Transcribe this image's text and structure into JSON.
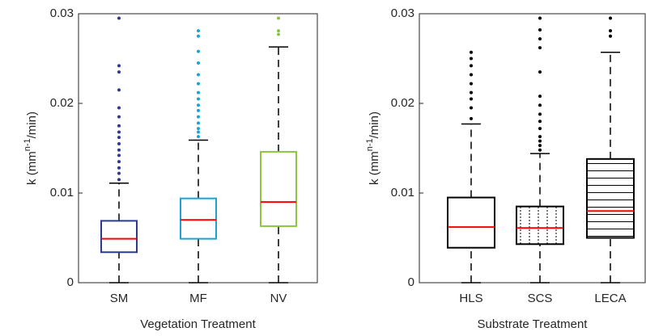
{
  "chart_data": [
    {
      "type": "box",
      "xlabel": "Vegetation Treatment",
      "ylabel": {
        "base": "k (mm",
        "sup": "n-1",
        "unit": "/min)"
      },
      "categories": [
        "SM",
        "MF",
        "NV"
      ],
      "ylim": [
        0,
        0.03
      ],
      "yticks": [
        0,
        0.01,
        0.02,
        0.03
      ],
      "median_color": "#ff0000",
      "boxes": [
        {
          "color": "#2b3990",
          "hatch": "none",
          "whisker_low": 0,
          "q1": 0.0034,
          "median": 0.0049,
          "q3": 0.0069,
          "whisker_high": 0.0111,
          "outliers": [
            0.0115,
            0.0122,
            0.0128,
            0.0135,
            0.0142,
            0.0148,
            0.0155,
            0.0162,
            0.0168,
            0.0175,
            0.0185,
            0.0195,
            0.0215,
            0.0235,
            0.0242,
            0.0295
          ]
        },
        {
          "color": "#1aa3d6",
          "hatch": "none",
          "whisker_low": 0,
          "q1": 0.0049,
          "median": 0.007,
          "q3": 0.0094,
          "whisker_high": 0.0159,
          "outliers": [
            0.0163,
            0.0168,
            0.0172,
            0.0178,
            0.0185,
            0.0192,
            0.0198,
            0.0205,
            0.0212,
            0.0222,
            0.0232,
            0.0245,
            0.0258,
            0.0275,
            0.0281
          ]
        },
        {
          "color": "#8dc63f",
          "hatch": "none",
          "whisker_low": 0,
          "q1": 0.0063,
          "median": 0.009,
          "q3": 0.0146,
          "whisker_high": 0.0263,
          "outliers": [
            0.0277,
            0.0281,
            0.0295
          ]
        }
      ]
    },
    {
      "type": "box",
      "xlabel": "Substrate Treatment",
      "ylabel": {
        "base": "k (mm",
        "sup": "n-1",
        "unit": "/min)"
      },
      "categories": [
        "HLS",
        "SCS",
        "LECA"
      ],
      "ylim": [
        0,
        0.03
      ],
      "yticks": [
        0,
        0.01,
        0.02,
        0.03
      ],
      "median_color": "#ff0000",
      "boxes": [
        {
          "color": "#000000",
          "hatch": "none",
          "whisker_low": 0,
          "q1": 0.0039,
          "median": 0.0062,
          "q3": 0.0095,
          "whisker_high": 0.0177,
          "outliers": [
            0.0183,
            0.0195,
            0.0205,
            0.0212,
            0.0222,
            0.0232,
            0.0242,
            0.025,
            0.0257
          ]
        },
        {
          "color": "#000000",
          "hatch": "dotted-vertical",
          "whisker_low": 0,
          "q1": 0.0043,
          "median": 0.0061,
          "q3": 0.0085,
          "whisker_high": 0.0144,
          "outliers": [
            0.0148,
            0.0153,
            0.0158,
            0.0163,
            0.0172,
            0.018,
            0.0188,
            0.0198,
            0.0208,
            0.0235,
            0.0262,
            0.0272,
            0.0282,
            0.0295
          ]
        },
        {
          "color": "#000000",
          "hatch": "horizontal",
          "whisker_low": 0,
          "q1": 0.005,
          "median": 0.008,
          "q3": 0.0138,
          "whisker_high": 0.0257,
          "outliers": [
            0.0275,
            0.0281,
            0.0295
          ]
        }
      ]
    }
  ]
}
